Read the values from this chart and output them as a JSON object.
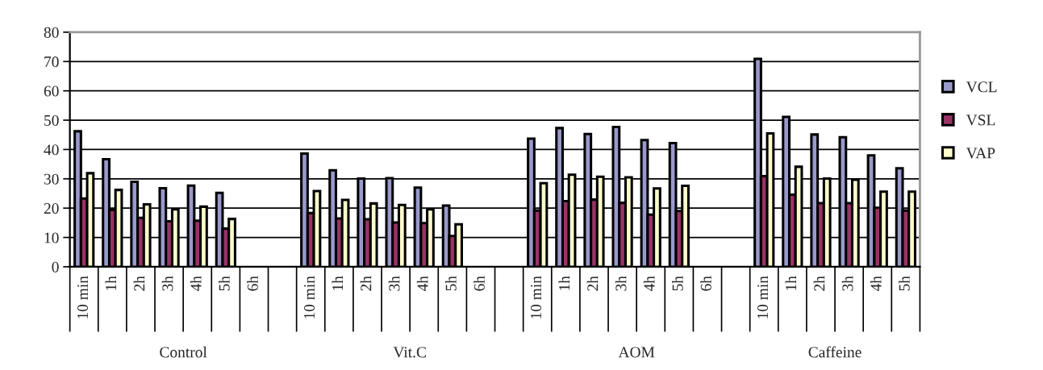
{
  "chart_data": {
    "type": "bar",
    "categories": [
      "10 min",
      "1h",
      "2h",
      "3h",
      "4h",
      "5h",
      "6h",
      null,
      "10 min",
      "1h",
      "2h",
      "3h",
      "4h",
      "5h",
      "6h",
      null,
      "10 min",
      "1h",
      "2h",
      "3h",
      "4h",
      "5h",
      "6h",
      null,
      "10 min",
      "1h",
      "2h",
      "3h",
      "4h",
      "5h"
    ],
    "series": [
      {
        "name": "VCL",
        "color": "#9999cc",
        "values": [
          46.2,
          36.7,
          29.0,
          26.8,
          27.7,
          25.2,
          null,
          null,
          38.6,
          32.9,
          30.1,
          30.2,
          27.0,
          20.9,
          null,
          null,
          43.7,
          47.3,
          45.3,
          47.7,
          43.2,
          42.2,
          null,
          null,
          70.9,
          51.1,
          45.1,
          44.2,
          38.0,
          33.6
        ]
      },
      {
        "name": "VSL",
        "color": "#993366",
        "values": [
          23.3,
          19.4,
          16.7,
          15.5,
          15.7,
          13.0,
          null,
          null,
          18.3,
          16.5,
          16.2,
          15.1,
          14.9,
          10.5,
          null,
          null,
          19.2,
          22.4,
          22.9,
          21.8,
          17.8,
          19.0,
          null,
          null,
          30.9,
          24.6,
          21.7,
          21.7,
          20.1,
          19.2
        ]
      },
      {
        "name": "VAP",
        "color": "#ffffcc",
        "values": [
          31.9,
          26.2,
          21.3,
          19.6,
          20.5,
          16.3,
          null,
          null,
          25.8,
          22.8,
          21.6,
          21.1,
          19.6,
          14.5,
          null,
          null,
          28.5,
          31.4,
          30.7,
          30.5,
          26.7,
          27.6,
          null,
          null,
          45.5,
          34.1,
          30.1,
          29.7,
          25.6,
          25.6
        ]
      }
    ],
    "annotations": [
      "Control",
      "Vit.C",
      "AOM",
      "Caffeine"
    ],
    "ylim": [
      0,
      80
    ],
    "yticks": [
      0,
      10,
      20,
      30,
      40,
      50,
      60,
      70,
      80
    ],
    "grid": "y",
    "legend": "right"
  }
}
